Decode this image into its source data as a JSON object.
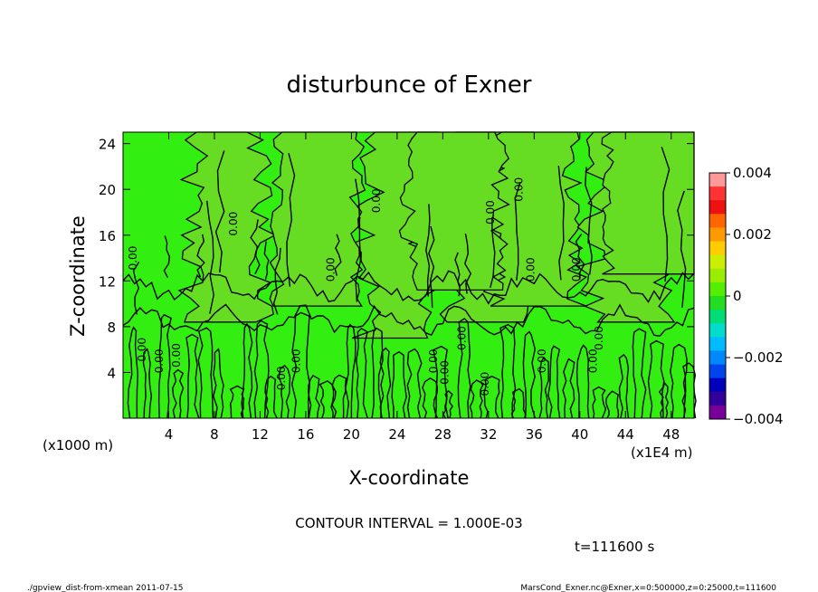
{
  "chart_data": {
    "type": "heatmap",
    "title": "disturbunce of Exner",
    "xlabel": "X-coordinate",
    "ylabel": "Z-coordinate",
    "x_unit_left": "(x1000 m)",
    "x_unit_right": "(x1E4 m)",
    "xlim": [
      0,
      50
    ],
    "ylim": [
      0,
      25
    ],
    "x_ticks": [
      4,
      8,
      12,
      16,
      20,
      24,
      28,
      32,
      36,
      40,
      44,
      48
    ],
    "y_ticks": [
      4,
      8,
      12,
      16,
      20,
      24
    ],
    "colorbar": {
      "range": [
        -0.004,
        0.004
      ],
      "tick_values": [
        0.004,
        0.002,
        0,
        -0.002,
        -0.004
      ],
      "tick_labels": [
        "0.004",
        "0.002",
        "0",
        "−0.002",
        "−0.004"
      ],
      "colors": [
        "#ff9999",
        "#ff3333",
        "#ee1111",
        "#ff6600",
        "#ff9900",
        "#ffcc00",
        "#ccee00",
        "#99ee00",
        "#55ee00",
        "#22dd22",
        "#00dd77",
        "#00ddcc",
        "#00bbff",
        "#0088ff",
        "#0044ee",
        "#0000bb",
        "#330099",
        "#770099"
      ]
    },
    "field_colors": {
      "background": "#33ee11",
      "positive_region": "#66dd22"
    },
    "contour_labels": [
      "0.00",
      "0.00",
      "0.00",
      "0.00",
      "0.00",
      "0.00",
      "0.00",
      "0.00",
      "0.00",
      "0.00",
      "0.00",
      "0.00",
      "0.00",
      "0.00",
      "0.00",
      "0.00",
      "0.00",
      "0.00",
      "0.00",
      "0.00"
    ],
    "contour_interval_text": "CONTOUR INTERVAL = 1.000E-03",
    "time_text": "t=111600 s"
  },
  "footer": {
    "left": "./gpview_dist-from-xmean  2011-07-15",
    "right": "MarsCond_Exner.nc@Exner,x=0:500000,z=0:25000,t=111600"
  }
}
